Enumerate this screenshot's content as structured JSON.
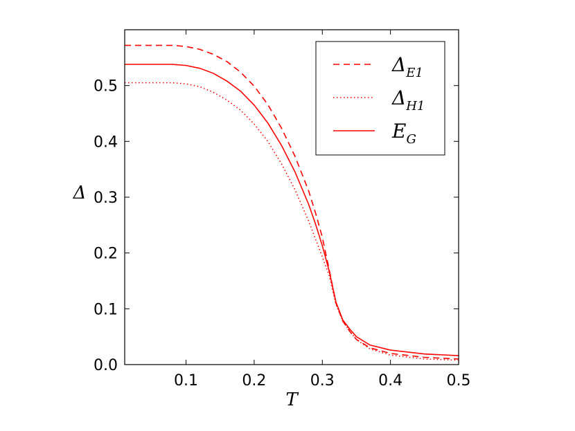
{
  "chart_data": {
    "type": "line",
    "xlabel": "T",
    "ylabel": "Δ",
    "xlim": [
      0.01,
      0.5
    ],
    "ylim": [
      0.0,
      0.6
    ],
    "xticks": [
      0.1,
      0.2,
      0.3,
      0.4,
      0.5
    ],
    "yticks": [
      0.0,
      0.1,
      0.2,
      0.3,
      0.4,
      0.5
    ],
    "xtick_labels": [
      "0.1",
      "0.2",
      "0.3",
      "0.4",
      "0.5"
    ],
    "ytick_labels": [
      "0.0",
      "0.1",
      "0.2",
      "0.3",
      "0.4",
      "0.5"
    ],
    "grid": false,
    "legend_position": "top-right",
    "color": "#ff0000",
    "series": [
      {
        "name": "Δ_E1",
        "legend_main": "Δ",
        "legend_sub": "E1",
        "style": "dashed",
        "x": [
          0.01,
          0.05,
          0.08,
          0.1,
          0.12,
          0.14,
          0.16,
          0.18,
          0.2,
          0.22,
          0.24,
          0.26,
          0.28,
          0.29,
          0.3,
          0.31,
          0.32,
          0.33,
          0.34,
          0.35,
          0.37,
          0.4,
          0.45,
          0.5
        ],
        "y": [
          0.572,
          0.572,
          0.572,
          0.57,
          0.565,
          0.556,
          0.543,
          0.524,
          0.499,
          0.466,
          0.424,
          0.373,
          0.311,
          0.272,
          0.228,
          0.171,
          0.11,
          0.078,
          0.06,
          0.045,
          0.03,
          0.02,
          0.013,
          0.01
        ]
      },
      {
        "name": "Δ_H1",
        "legend_main": "Δ",
        "legend_sub": "H1",
        "style": "dotted",
        "x": [
          0.01,
          0.05,
          0.08,
          0.1,
          0.12,
          0.14,
          0.16,
          0.18,
          0.2,
          0.22,
          0.24,
          0.26,
          0.28,
          0.29,
          0.3,
          0.31,
          0.32,
          0.33,
          0.34,
          0.35,
          0.37,
          0.4,
          0.45,
          0.5
        ],
        "y": [
          0.505,
          0.505,
          0.505,
          0.503,
          0.498,
          0.488,
          0.474,
          0.456,
          0.431,
          0.4,
          0.36,
          0.313,
          0.257,
          0.225,
          0.193,
          0.16,
          0.108,
          0.078,
          0.06,
          0.045,
          0.028,
          0.017,
          0.01,
          0.008
        ]
      },
      {
        "name": "E_G",
        "legend_main": "E",
        "legend_sub": "G",
        "style": "solid",
        "x": [
          0.01,
          0.05,
          0.08,
          0.1,
          0.12,
          0.14,
          0.16,
          0.18,
          0.2,
          0.22,
          0.24,
          0.26,
          0.28,
          0.29,
          0.3,
          0.31,
          0.32,
          0.33,
          0.34,
          0.35,
          0.37,
          0.4,
          0.45,
          0.5
        ],
        "y": [
          0.538,
          0.538,
          0.538,
          0.536,
          0.531,
          0.522,
          0.508,
          0.49,
          0.465,
          0.433,
          0.393,
          0.345,
          0.287,
          0.252,
          0.213,
          0.168,
          0.112,
          0.08,
          0.064,
          0.05,
          0.035,
          0.026,
          0.019,
          0.016
        ]
      }
    ]
  }
}
